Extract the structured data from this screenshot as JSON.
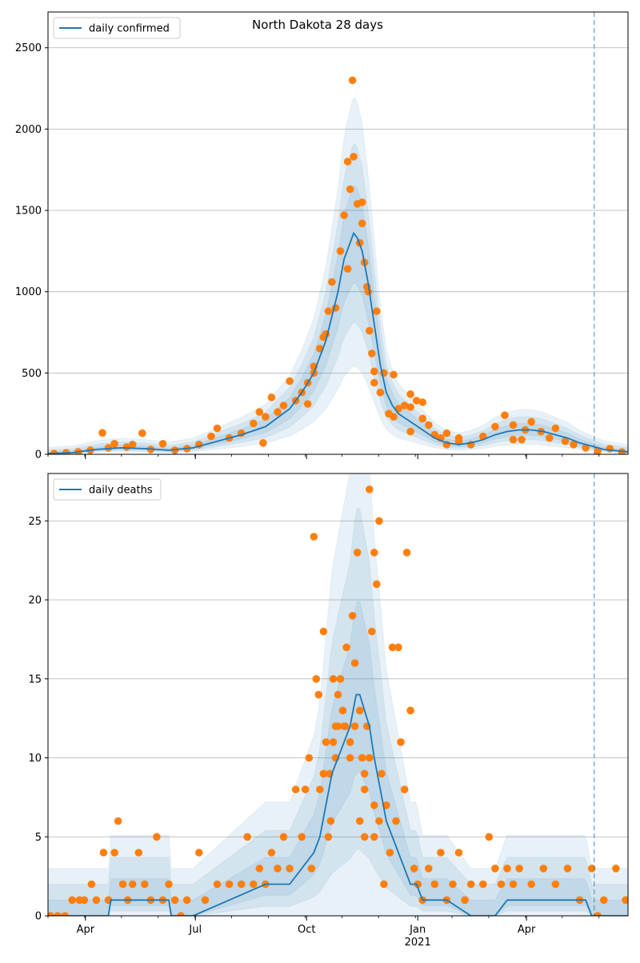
{
  "title": "North Dakota 28 days",
  "colors": {
    "line": "#1f77b4",
    "dots": "#ff7f0e",
    "band": "#1f77b4",
    "grid": "#b0b0b0",
    "cutoff": "#1f77b4"
  },
  "x_ticks": [
    {
      "label": "Apr",
      "day": 31
    },
    {
      "label": "Jul",
      "day": 122
    },
    {
      "label": "Oct",
      "day": 214
    },
    {
      "label": "Jan",
      "day": 306,
      "sub": "2021"
    },
    {
      "label": "Apr",
      "day": 396
    }
  ],
  "chart_data": [
    {
      "type": "line",
      "legend": "daily confirmed",
      "legend_position": "top-left",
      "x_unit": "days since 2020-03-01",
      "xlim": [
        0,
        480
      ],
      "ylim": [
        0,
        2720
      ],
      "yticks": [
        0,
        500,
        1000,
        1500,
        2000,
        2500
      ],
      "grid": "horizontal",
      "cutoff_day": 452,
      "fit": [
        [
          0,
          5
        ],
        [
          20,
          10
        ],
        [
          40,
          30
        ],
        [
          60,
          40
        ],
        [
          80,
          35
        ],
        [
          100,
          25
        ],
        [
          120,
          40
        ],
        [
          140,
          80
        ],
        [
          160,
          120
        ],
        [
          180,
          170
        ],
        [
          200,
          280
        ],
        [
          210,
          380
        ],
        [
          220,
          500
        ],
        [
          230,
          700
        ],
        [
          240,
          1000
        ],
        [
          245,
          1200
        ],
        [
          250,
          1300
        ],
        [
          253,
          1360
        ],
        [
          256,
          1330
        ],
        [
          260,
          1250
        ],
        [
          265,
          1050
        ],
        [
          270,
          800
        ],
        [
          275,
          550
        ],
        [
          280,
          380
        ],
        [
          285,
          300
        ],
        [
          290,
          250
        ],
        [
          300,
          200
        ],
        [
          310,
          150
        ],
        [
          320,
          100
        ],
        [
          330,
          70
        ],
        [
          340,
          60
        ],
        [
          350,
          70
        ],
        [
          360,
          90
        ],
        [
          370,
          120
        ],
        [
          380,
          140
        ],
        [
          390,
          150
        ],
        [
          400,
          150
        ],
        [
          410,
          140
        ],
        [
          420,
          120
        ],
        [
          430,
          100
        ],
        [
          440,
          70
        ],
        [
          450,
          50
        ],
        [
          460,
          30
        ],
        [
          480,
          15
        ]
      ],
      "bands": [
        {
          "factor": 0.22,
          "add": 8
        },
        {
          "factor": 0.4,
          "add": 20
        },
        {
          "factor": 0.6,
          "add": 35
        }
      ],
      "observed": [
        [
          5,
          5
        ],
        [
          15,
          10
        ],
        [
          25,
          15
        ],
        [
          35,
          25
        ],
        [
          45,
          132
        ],
        [
          50,
          40
        ],
        [
          55,
          65
        ],
        [
          65,
          45
        ],
        [
          70,
          60
        ],
        [
          78,
          130
        ],
        [
          85,
          30
        ],
        [
          95,
          65
        ],
        [
          105,
          25
        ],
        [
          115,
          35
        ],
        [
          125,
          60
        ],
        [
          135,
          110
        ],
        [
          140,
          160
        ],
        [
          150,
          100
        ],
        [
          160,
          130
        ],
        [
          170,
          190
        ],
        [
          175,
          260
        ],
        [
          180,
          230
        ],
        [
          185,
          350
        ],
        [
          190,
          260
        ],
        [
          195,
          300
        ],
        [
          200,
          450
        ],
        [
          205,
          330
        ],
        [
          210,
          380
        ],
        [
          215,
          440
        ],
        [
          220,
          500
        ],
        [
          225,
          650
        ],
        [
          228,
          720
        ],
        [
          232,
          880
        ],
        [
          235,
          1060
        ],
        [
          238,
          900
        ],
        [
          242,
          1250
        ],
        [
          245,
          1470
        ],
        [
          248,
          1800
        ],
        [
          250,
          1630
        ],
        [
          253,
          1830
        ],
        [
          256,
          1540
        ],
        [
          258,
          1300
        ],
        [
          260,
          1420
        ],
        [
          262,
          1180
        ],
        [
          264,
          1030
        ],
        [
          266,
          760
        ],
        [
          268,
          620
        ],
        [
          270,
          510
        ],
        [
          272,
          880
        ],
        [
          275,
          380
        ],
        [
          278,
          500
        ],
        [
          282,
          250
        ],
        [
          286,
          230
        ],
        [
          290,
          280
        ],
        [
          295,
          300
        ],
        [
          300,
          290
        ],
        [
          305,
          330
        ],
        [
          310,
          220
        ],
        [
          315,
          180
        ],
        [
          320,
          120
        ],
        [
          325,
          100
        ],
        [
          330,
          60
        ],
        [
          340,
          80
        ],
        [
          350,
          60
        ],
        [
          360,
          110
        ],
        [
          370,
          170
        ],
        [
          378,
          240
        ],
        [
          385,
          180
        ],
        [
          392,
          90
        ],
        [
          400,
          200
        ],
        [
          408,
          140
        ],
        [
          415,
          100
        ],
        [
          420,
          160
        ],
        [
          428,
          80
        ],
        [
          435,
          60
        ],
        [
          445,
          40
        ],
        [
          455,
          20
        ],
        [
          465,
          35
        ],
        [
          475,
          15
        ],
        [
          252,
          2300
        ],
        [
          230,
          740
        ],
        [
          248,
          1140
        ],
        [
          265,
          1000
        ],
        [
          260,
          1550
        ],
        [
          178,
          70
        ],
        [
          220,
          540
        ],
        [
          215,
          310
        ],
        [
          385,
          90
        ],
        [
          395,
          150
        ],
        [
          300,
          140
        ],
        [
          330,
          130
        ],
        [
          340,
          100
        ],
        [
          270,
          440
        ],
        [
          286,
          490
        ],
        [
          300,
          370
        ],
        [
          310,
          320
        ]
      ]
    },
    {
      "type": "line",
      "legend": "daily deaths",
      "legend_position": "top-left",
      "x_unit": "days since 2020-03-01",
      "xlim": [
        0,
        480
      ],
      "ylim": [
        0,
        28
      ],
      "yticks": [
        0,
        5,
        10,
        15,
        20,
        25
      ],
      "grid": "horizontal",
      "cutoff_day": 452,
      "fit": [
        [
          0,
          0
        ],
        [
          50,
          0
        ],
        [
          52,
          1
        ],
        [
          80,
          1
        ],
        [
          100,
          1
        ],
        [
          102,
          0
        ],
        [
          120,
          0
        ],
        [
          150,
          1
        ],
        [
          180,
          2
        ],
        [
          200,
          2
        ],
        [
          210,
          3
        ],
        [
          220,
          4
        ],
        [
          225,
          5
        ],
        [
          230,
          7
        ],
        [
          235,
          9
        ],
        [
          240,
          10
        ],
        [
          245,
          11
        ],
        [
          250,
          12
        ],
        [
          255,
          14
        ],
        [
          258,
          14
        ],
        [
          262,
          13
        ],
        [
          266,
          12
        ],
        [
          270,
          10
        ],
        [
          275,
          8
        ],
        [
          280,
          6
        ],
        [
          285,
          5
        ],
        [
          290,
          4
        ],
        [
          295,
          3
        ],
        [
          300,
          2
        ],
        [
          305,
          2
        ],
        [
          310,
          1
        ],
        [
          330,
          1
        ],
        [
          350,
          0
        ],
        [
          370,
          0
        ],
        [
          380,
          1
        ],
        [
          400,
          1
        ],
        [
          410,
          1
        ],
        [
          430,
          1
        ],
        [
          440,
          1
        ],
        [
          445,
          1
        ],
        [
          450,
          0
        ],
        [
          480,
          0
        ]
      ],
      "bands": [
        {
          "factor": 0.35,
          "add": 1
        },
        {
          "factor": 0.7,
          "add": 2
        },
        {
          "factor": 1.1,
          "add": 3
        }
      ],
      "observed": [
        [
          2,
          0
        ],
        [
          8,
          0
        ],
        [
          14,
          0
        ],
        [
          20,
          1
        ],
        [
          26,
          1
        ],
        [
          30,
          1
        ],
        [
          36,
          2
        ],
        [
          40,
          1
        ],
        [
          46,
          4
        ],
        [
          50,
          1
        ],
        [
          55,
          4
        ],
        [
          58,
          6
        ],
        [
          62,
          2
        ],
        [
          66,
          1
        ],
        [
          70,
          2
        ],
        [
          75,
          4
        ],
        [
          80,
          2
        ],
        [
          85,
          1
        ],
        [
          90,
          5
        ],
        [
          95,
          1
        ],
        [
          100,
          2
        ],
        [
          105,
          1
        ],
        [
          110,
          0
        ],
        [
          115,
          1
        ],
        [
          125,
          4
        ],
        [
          130,
          1
        ],
        [
          140,
          2
        ],
        [
          150,
          2
        ],
        [
          160,
          2
        ],
        [
          165,
          5
        ],
        [
          170,
          2
        ],
        [
          175,
          3
        ],
        [
          180,
          2
        ],
        [
          185,
          4
        ],
        [
          190,
          3
        ],
        [
          195,
          5
        ],
        [
          200,
          3
        ],
        [
          205,
          8
        ],
        [
          210,
          5
        ],
        [
          213,
          8
        ],
        [
          216,
          10
        ],
        [
          218,
          3
        ],
        [
          220,
          24
        ],
        [
          222,
          15
        ],
        [
          225,
          8
        ],
        [
          228,
          18
        ],
        [
          230,
          11
        ],
        [
          233,
          9
        ],
        [
          236,
          15
        ],
        [
          238,
          12
        ],
        [
          240,
          12
        ],
        [
          242,
          15
        ],
        [
          245,
          12
        ],
        [
          247,
          17
        ],
        [
          250,
          11
        ],
        [
          252,
          19
        ],
        [
          254,
          16
        ],
        [
          256,
          23
        ],
        [
          258,
          6
        ],
        [
          260,
          10
        ],
        [
          262,
          5
        ],
        [
          264,
          12
        ],
        [
          266,
          27
        ],
        [
          268,
          18
        ],
        [
          270,
          23
        ],
        [
          272,
          21
        ],
        [
          274,
          25
        ],
        [
          276,
          9
        ],
        [
          278,
          2
        ],
        [
          280,
          7
        ],
        [
          283,
          4
        ],
        [
          285,
          17
        ],
        [
          288,
          6
        ],
        [
          290,
          17
        ],
        [
          292,
          11
        ],
        [
          295,
          8
        ],
        [
          297,
          23
        ],
        [
          300,
          13
        ],
        [
          303,
          3
        ],
        [
          306,
          2
        ],
        [
          310,
          1
        ],
        [
          315,
          3
        ],
        [
          320,
          2
        ],
        [
          325,
          4
        ],
        [
          330,
          1
        ],
        [
          335,
          2
        ],
        [
          340,
          4
        ],
        [
          345,
          1
        ],
        [
          350,
          2
        ],
        [
          360,
          2
        ],
        [
          365,
          5
        ],
        [
          370,
          3
        ],
        [
          375,
          2
        ],
        [
          380,
          3
        ],
        [
          385,
          2
        ],
        [
          390,
          3
        ],
        [
          400,
          2
        ],
        [
          410,
          3
        ],
        [
          420,
          2
        ],
        [
          430,
          3
        ],
        [
          440,
          1
        ],
        [
          450,
          3
        ],
        [
          455,
          0
        ],
        [
          460,
          1
        ],
        [
          470,
          3
        ],
        [
          478,
          1
        ],
        [
          240,
          14
        ],
        [
          236,
          11
        ],
        [
          244,
          13
        ],
        [
          250,
          10
        ],
        [
          254,
          12
        ],
        [
          258,
          13
        ],
        [
          262,
          9
        ],
        [
          266,
          10
        ],
        [
          270,
          7
        ],
        [
          224,
          14
        ],
        [
          228,
          9
        ],
        [
          232,
          5
        ],
        [
          234,
          6
        ],
        [
          238,
          10
        ],
        [
          246,
          12
        ],
        [
          262,
          8
        ],
        [
          270,
          5
        ],
        [
          274,
          6
        ]
      ]
    }
  ]
}
